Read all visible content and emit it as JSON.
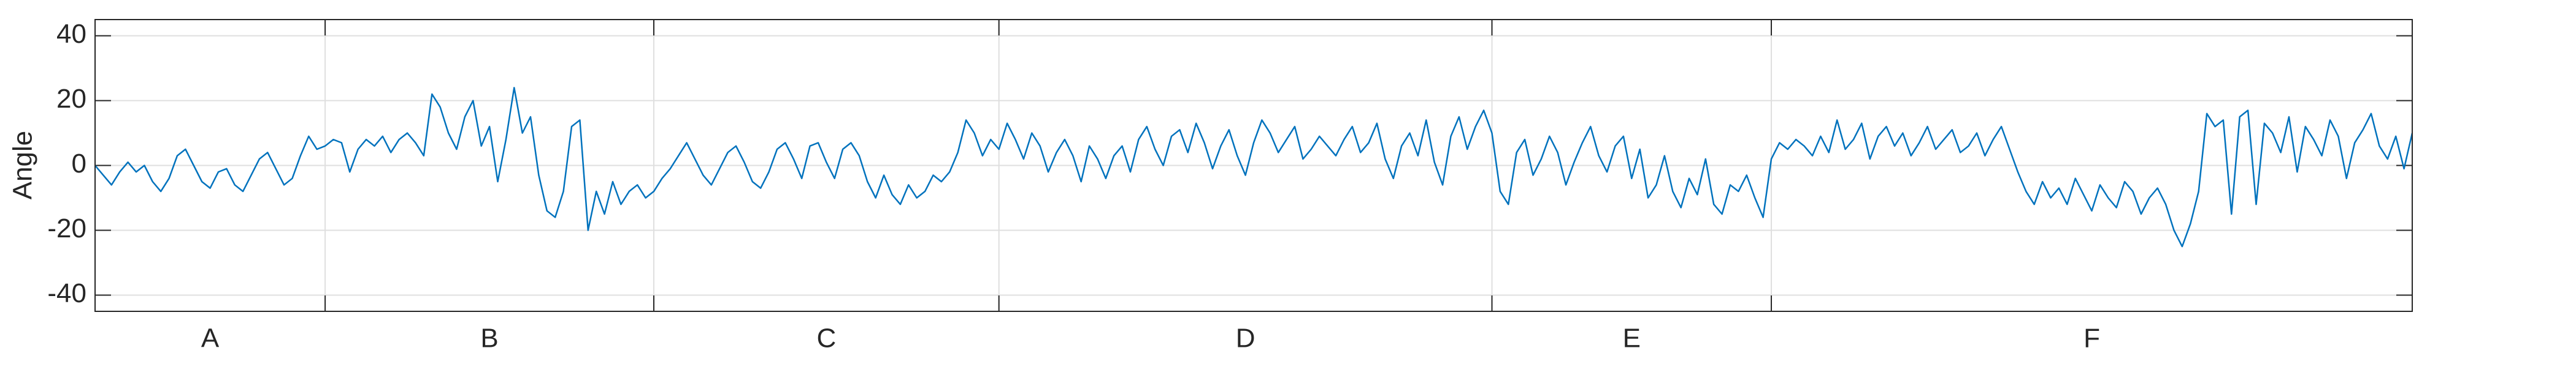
{
  "chart_data": {
    "type": "line",
    "y_label": "Angle",
    "color": "#0072bd",
    "grid": true,
    "xlim": [
      0,
      282
    ],
    "ylim": [
      -45,
      45
    ],
    "yticks": [
      -40,
      -20,
      0,
      20,
      40
    ],
    "sections": [
      {
        "label": "A",
        "start": 0,
        "end": 28
      },
      {
        "label": "B",
        "start": 28,
        "end": 68
      },
      {
        "label": "C",
        "start": 68,
        "end": 110
      },
      {
        "label": "D",
        "start": 110,
        "end": 170
      },
      {
        "label": "E",
        "start": 170,
        "end": 204
      },
      {
        "label": "F",
        "start": 204,
        "end": 282
      }
    ],
    "values": [
      0,
      -3,
      -6,
      -2,
      1,
      -2,
      0,
      -5,
      -8,
      -4,
      3,
      5,
      0,
      -5,
      -7,
      -2,
      -1,
      -6,
      -8,
      -3,
      2,
      4,
      -1,
      -6,
      -4,
      3,
      9,
      5,
      6,
      8,
      7,
      -2,
      5,
      8,
      6,
      9,
      4,
      8,
      10,
      7,
      3,
      22,
      18,
      10,
      5,
      15,
      20,
      6,
      12,
      -5,
      8,
      24,
      10,
      15,
      -3,
      -14,
      -16,
      -8,
      12,
      14,
      -20,
      -8,
      -15,
      -5,
      -12,
      -8,
      -6,
      -10,
      -8,
      -4,
      -1,
      3,
      7,
      2,
      -3,
      -6,
      -1,
      4,
      6,
      1,
      -5,
      -7,
      -2,
      5,
      7,
      2,
      -4,
      6,
      7,
      1,
      -4,
      5,
      7,
      3,
      -5,
      -10,
      -3,
      -9,
      -12,
      -6,
      -10,
      -8,
      -3,
      -5,
      -2,
      4,
      14,
      10,
      3,
      8,
      5,
      13,
      8,
      2,
      10,
      6,
      -2,
      4,
      8,
      3,
      -5,
      6,
      2,
      -4,
      3,
      6,
      -2,
      8,
      12,
      5,
      0,
      9,
      11,
      4,
      13,
      7,
      -1,
      6,
      11,
      3,
      -3,
      7,
      14,
      10,
      4,
      8,
      12,
      2,
      5,
      9,
      6,
      3,
      8,
      12,
      4,
      7,
      13,
      2,
      -4,
      6,
      10,
      3,
      14,
      1,
      -6,
      9,
      15,
      5,
      12,
      17,
      10,
      -8,
      -12,
      4,
      8,
      -3,
      2,
      9,
      4,
      -6,
      1,
      7,
      12,
      3,
      -2,
      6,
      9,
      -4,
      5,
      -10,
      -6,
      3,
      -8,
      -13,
      -4,
      -9,
      2,
      -12,
      -15,
      -6,
      -8,
      -3,
      -10,
      -16,
      2,
      7,
      5,
      8,
      6,
      3,
      9,
      4,
      14,
      5,
      8,
      13,
      2,
      9,
      12,
      6,
      10,
      3,
      7,
      12,
      5,
      8,
      11,
      4,
      6,
      10,
      3,
      8,
      12,
      5,
      -2,
      -8,
      -12,
      -5,
      -10,
      -7,
      -12,
      -4,
      -9,
      -14,
      -6,
      -10,
      -13,
      -5,
      -8,
      -15,
      -10,
      -7,
      -12,
      -20,
      -25,
      -18,
      -8,
      16,
      12,
      14,
      -15,
      15,
      17,
      -12,
      13,
      10,
      4,
      15,
      -2,
      12,
      8,
      3,
      14,
      9,
      -4,
      7,
      11,
      16,
      6,
      2,
      9,
      -1,
      10
    ]
  }
}
